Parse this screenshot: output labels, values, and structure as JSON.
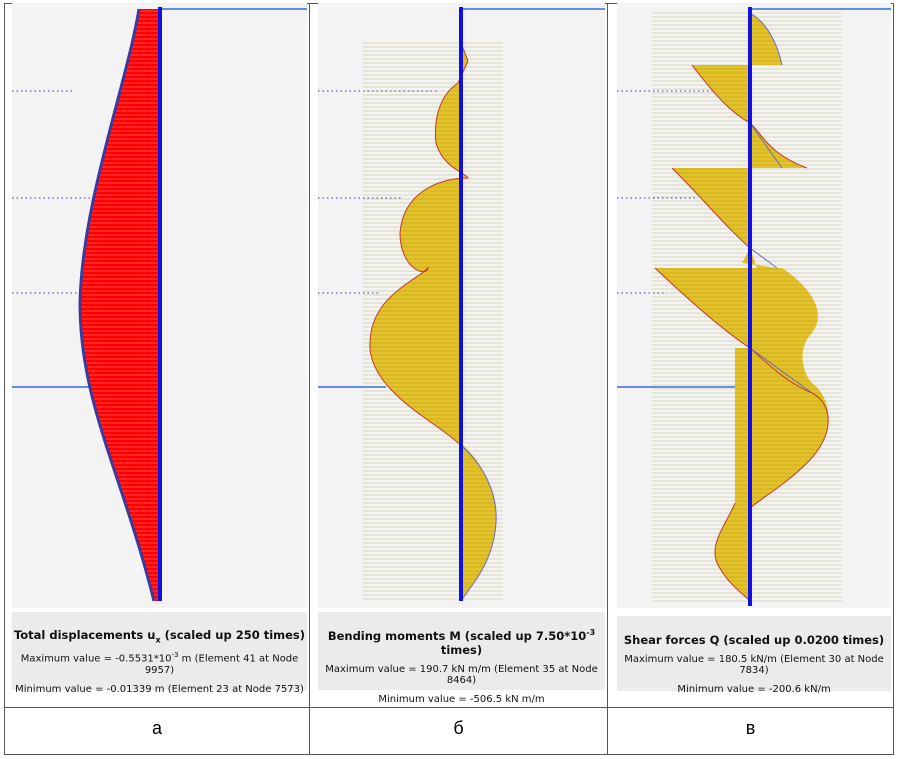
{
  "panels": [
    {
      "id": "displacements",
      "title": "Total displacements u",
      "title_sub": "x",
      "title_tail": " (scaled up 250 times)",
      "max_text": "Maximum value = -0.5531*10",
      "max_sup": "-3",
      "max_tail": " m (Element 41 at Node 9957)",
      "min_text": "Minimum value = -0.01339 m (Element 23 at Node 7573)",
      "label": "а",
      "fill_color": "#ff0000",
      "line_color": "#3a3aa0"
    },
    {
      "id": "bending-moments",
      "title": "Bending moments M (scaled up 7.50*10",
      "title_sup": "-3",
      "title_tail": " times)",
      "max_text": "Maximum value = 190.7 kN m/m (Element 35 at Node 8464)",
      "min_text": "Minimum value = -506.5 kN m/m",
      "label": "б",
      "fill_color": "#e3c22a",
      "line_color": "#c0392b"
    },
    {
      "id": "shear-forces",
      "title": "Shear forces Q (scaled up 0.0200 times)",
      "max_text": "Maximum value = 180.5 kN/m (Element 30 at Node 7834)",
      "min_text": "Minimum value = -200.6 kN/m",
      "label": "в",
      "fill_color": "#e3c22a",
      "line_color": "#c0392b"
    }
  ],
  "colors": {
    "wall": "#1010e0",
    "ground_line": "#2f6fd6",
    "background": "#f3f3f3",
    "caption_bg": "#ebebeb",
    "dotted": "#3a3ab0"
  }
}
